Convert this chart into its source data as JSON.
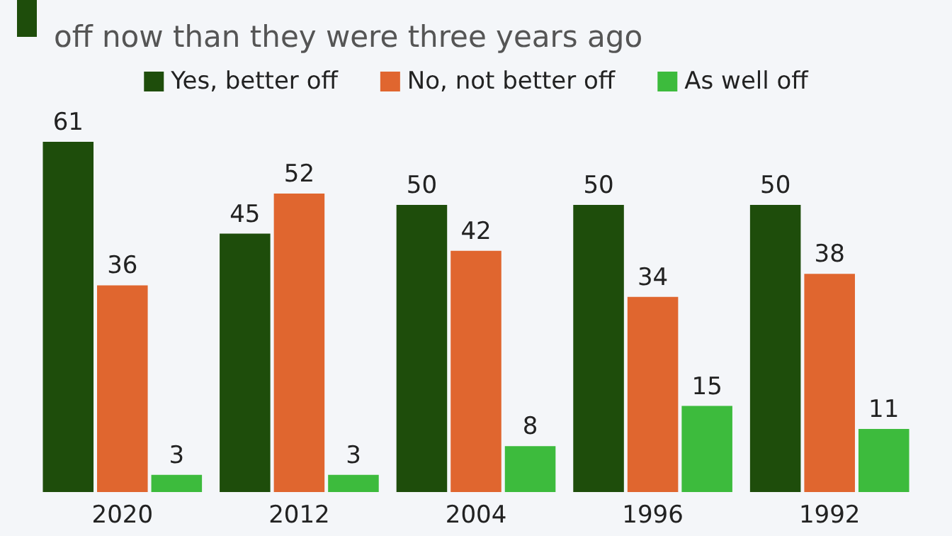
{
  "chart_data": {
    "type": "bar",
    "title": "off now than they were three years ago",
    "categories": [
      "2020",
      "2012",
      "2004",
      "1996",
      "1992"
    ],
    "series": [
      {
        "name": "Yes, better off",
        "color": "#1e4d0b",
        "values": [
          61,
          45,
          50,
          50,
          50
        ]
      },
      {
        "name": "No, not better off",
        "color": "#e0662f",
        "values": [
          36,
          52,
          42,
          34,
          38
        ]
      },
      {
        "name": "As well off",
        "color": "#3dbb3d",
        "values": [
          3,
          3,
          8,
          15,
          11
        ]
      }
    ],
    "data_labels": true,
    "legend": "top"
  }
}
